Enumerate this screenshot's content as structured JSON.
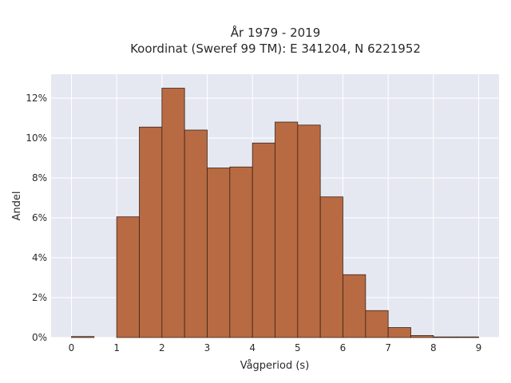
{
  "chart_data": {
    "type": "bar",
    "title_lines": [
      "År 1979 - 2019",
      "Koordinat (Sweref 99 TM): E 341204, N 6221952"
    ],
    "xlabel": "Vågperiod (s)",
    "ylabel": "Andel",
    "bin_width": 0.5,
    "bin_starts": [
      0,
      0.5,
      1,
      1.5,
      2,
      2.5,
      3,
      3.5,
      4,
      4.5,
      5,
      5.5,
      6,
      6.5,
      7,
      7.5,
      8,
      8.5
    ],
    "values": [
      0.05,
      0,
      6.05,
      10.55,
      12.5,
      10.4,
      8.5,
      8.55,
      9.75,
      10.8,
      10.65,
      7.05,
      3.15,
      1.35,
      0.5,
      0.1,
      0.03,
      0.03
    ],
    "xlim": [
      -0.45,
      9.45
    ],
    "ylim": [
      0,
      13.2
    ],
    "x_ticks": [
      0,
      1,
      2,
      3,
      4,
      5,
      6,
      7,
      8,
      9
    ],
    "y_ticks": [
      0,
      2,
      4,
      6,
      8,
      10,
      12
    ],
    "y_tick_suffix": "%",
    "grid": true,
    "colors": {
      "bar_fill": "#b86a43",
      "bar_edge": "#3b2418",
      "plot_bg": "#e5e8f1",
      "grid": "#ffffff"
    }
  }
}
